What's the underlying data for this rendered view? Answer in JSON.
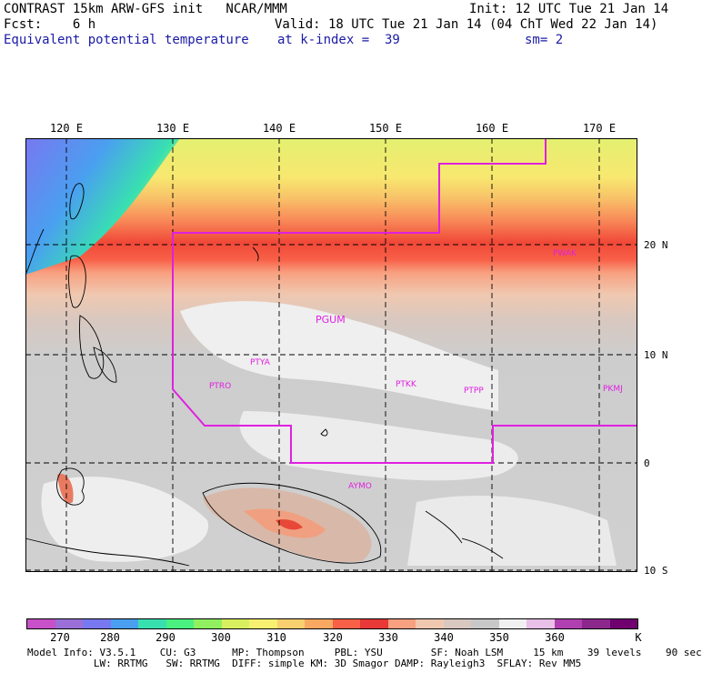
{
  "header": {
    "line1_left": "CONTRAST 15km ARW-GFS init   NCAR/MMM",
    "line1_right": "Init: 12 UTC Tue 21 Jan 14",
    "line2_left": "Fcst:    6 h",
    "line2_right": "Valid: 18 UTC Tue 21 Jan 14 (04 ChT Wed 22 Jan 14)",
    "line3_left": "Equivalent potential temperature",
    "line3_mid": "at k-index =  39",
    "line3_right": "sm= 2"
  },
  "map": {
    "lon_labels": [
      "120 E",
      "130 E",
      "140 E",
      "150 E",
      "160 E",
      "170 E"
    ],
    "lat_labels": [
      "20 N",
      "10 N",
      "0",
      "10 S"
    ],
    "stations": [
      {
        "id": "PWAK"
      },
      {
        "id": "PGUM"
      },
      {
        "id": "PTYA"
      },
      {
        "id": "PTRO"
      },
      {
        "id": "PTKK"
      },
      {
        "id": "PTPP"
      },
      {
        "id": "PKMJ"
      },
      {
        "id": "AYMO"
      }
    ],
    "colors": {
      "boundary": "#e020e0",
      "grid": "#000000"
    }
  },
  "colorbar": {
    "labels": [
      "270",
      "280",
      "290",
      "300",
      "310",
      "320",
      "330",
      "340",
      "350",
      "360"
    ],
    "unit": "K",
    "colors": [
      "#c850c8",
      "#9a70d8",
      "#7878f0",
      "#4a9ff0",
      "#38e0b0",
      "#4af080",
      "#90f060",
      "#d8f060",
      "#f8f070",
      "#f8d070",
      "#f8a860",
      "#f86048",
      "#e83838",
      "#f8a080",
      "#f0c8b0",
      "#d8c8c0",
      "#c8c8c8",
      "#f0f0f0",
      "#e8c0e8",
      "#b040b0",
      "#8c288c",
      "#700070"
    ]
  },
  "footer": {
    "line1": "Model Info: V3.5.1    CU: G3      MP: Thompson     PBL: YSU        SF: Noah LSM     15 km    39 levels    90 sec",
    "line2": "           LW: RRTMG   SW: RRTMG  DIFF: simple KM: 3D Smagor DAMP: Rayleigh3  SFLAY: Rev MM5"
  }
}
